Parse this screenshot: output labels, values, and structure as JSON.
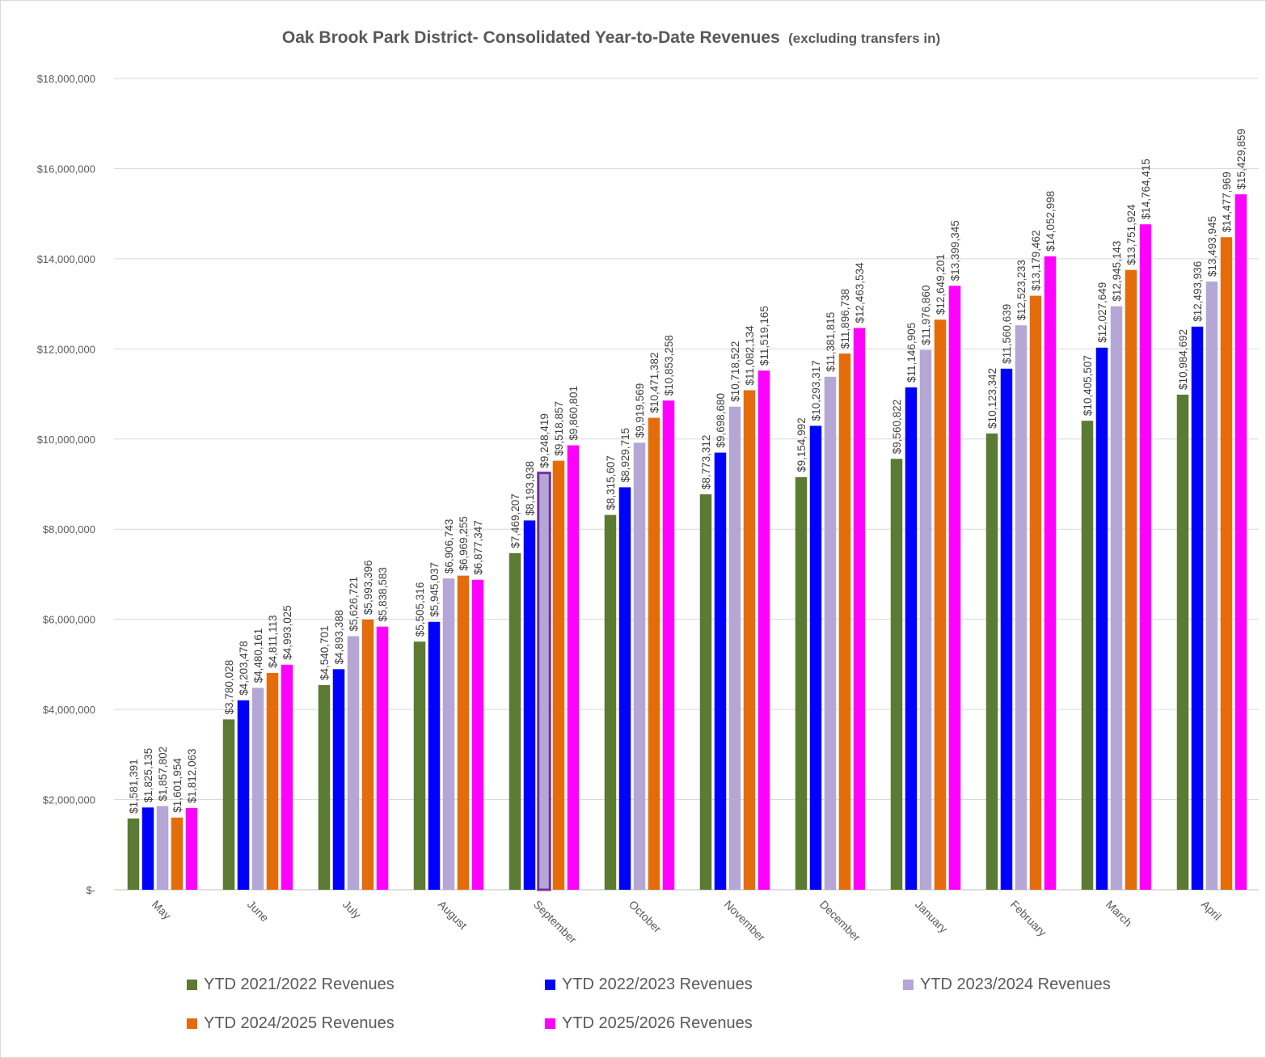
{
  "chart_data": {
    "type": "bar",
    "title": "Oak Brook Park District- Consolidated Year-to-Date Revenues",
    "subtitle": "(excluding transfers in)",
    "xlabel": "",
    "ylabel": "",
    "ylim": [
      0,
      18000000
    ],
    "yticks": [
      0,
      2000000,
      4000000,
      6000000,
      8000000,
      10000000,
      12000000,
      14000000,
      16000000,
      18000000
    ],
    "ytick_labels": [
      "$-",
      "$2,000,000",
      "$4,000,000",
      "$6,000,000",
      "$8,000,000",
      "$10,000,000",
      "$12,000,000",
      "$14,000,000",
      "$16,000,000",
      "$18,000,000"
    ],
    "grid": true,
    "legend_position": "bottom",
    "categories": [
      "May",
      "June",
      "July",
      "August",
      "September",
      "October",
      "November",
      "December",
      "January",
      "February",
      "March",
      "April"
    ],
    "series": [
      {
        "name": "YTD 2021/2022 Revenues",
        "color": "#5b7a32",
        "values": [
          1581391,
          3780028,
          4540701,
          5505316,
          7469207,
          8315607,
          8773312,
          9154992,
          9560822,
          10123342,
          10405507,
          10984692
        ],
        "labels": [
          "$1,581,391",
          "$3,780,028",
          "$4,540,701",
          "$5,505,316",
          "$7,469,207",
          "$8,315,607",
          "$8,773,312",
          "$9,154,992",
          "$9,560,822",
          "$10,123,342",
          "$10,405,507",
          "$10,984,692"
        ]
      },
      {
        "name": "YTD 2022/2023 Revenues",
        "color": "#0000ff",
        "values": [
          1825135,
          4203478,
          4893388,
          5945037,
          8193938,
          8929715,
          9698680,
          10293317,
          11146905,
          11560639,
          12027649,
          12493936
        ],
        "labels": [
          "$1,825,135",
          "$4,203,478",
          "$4,893,388",
          "$5,945,037",
          "$8,193,938",
          "$8,929,715",
          "$9,698,680",
          "$10,293,317",
          "$11,146,905",
          "$11,560,639",
          "$12,027,649",
          "$12,493,936"
        ]
      },
      {
        "name": "YTD 2023/2024 Revenues",
        "color": "#b4a7d6",
        "values": [
          1857802,
          4480161,
          5626721,
          6906743,
          9248419,
          9919569,
          10718522,
          11381815,
          11976860,
          12523233,
          12945143,
          13493945
        ],
        "labels": [
          "$1,857,802",
          "$4,480,161",
          "$5,626,721",
          "$6,906,743",
          "$9,248,419",
          "$9,919,569",
          "$10,718,522",
          "$11,381,815",
          "$11,976,860",
          "$12,523,233",
          "$12,945,143",
          "$13,493,945"
        ]
      },
      {
        "name": "YTD 2024/2025 Revenues",
        "color": "#e46c0a",
        "values": [
          1601954,
          4811113,
          5993396,
          6969255,
          9518857,
          10471382,
          11082134,
          11896738,
          12649201,
          13179462,
          13751924,
          14477969
        ],
        "labels": [
          "$1,601,954",
          "$4,811,113",
          "$5,993,396",
          "$6,969,255",
          "$9,518,857",
          "$10,471,382",
          "$11,082,134",
          "$11,896,738",
          "$12,649,201",
          "$13,179,462",
          "$13,751,924",
          "$14,477,969"
        ]
      },
      {
        "name": "YTD 2025/2026 Revenues",
        "color": "#ff00ff",
        "values": [
          1812063,
          4993025,
          5838583,
          6877347,
          9860801,
          10853258,
          11519165,
          12463534,
          13399345,
          14052998,
          14764415,
          15429859
        ],
        "labels": [
          "$1,812,063",
          "$4,993,025",
          "$5,838,583",
          "$6,877,347",
          "$9,860,801",
          "$10,853,258",
          "$11,519,165",
          "$12,463,534",
          "$13,399,345",
          "$14,052,998",
          "$14,764,415",
          "$15,429,859"
        ]
      }
    ],
    "highlight": {
      "series": 2,
      "category": 4,
      "outline_color": "#7030a0"
    }
  }
}
